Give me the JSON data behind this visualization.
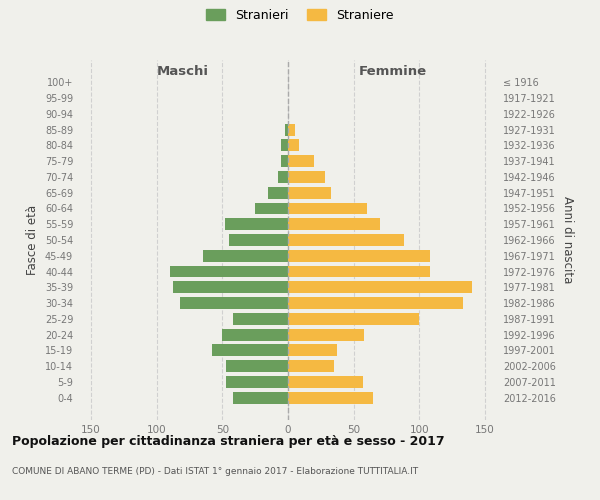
{
  "age_groups": [
    "100+",
    "95-99",
    "90-94",
    "85-89",
    "80-84",
    "75-79",
    "70-74",
    "65-69",
    "60-64",
    "55-59",
    "50-54",
    "45-49",
    "40-44",
    "35-39",
    "30-34",
    "25-29",
    "20-24",
    "15-19",
    "10-14",
    "5-9",
    "0-4"
  ],
  "birth_years": [
    "≤ 1916",
    "1917-1921",
    "1922-1926",
    "1927-1931",
    "1932-1936",
    "1937-1941",
    "1942-1946",
    "1947-1951",
    "1952-1956",
    "1957-1961",
    "1962-1966",
    "1967-1971",
    "1972-1976",
    "1977-1981",
    "1982-1986",
    "1987-1991",
    "1992-1996",
    "1997-2001",
    "2002-2006",
    "2007-2011",
    "2012-2016"
  ],
  "maschi": [
    0,
    0,
    0,
    2,
    5,
    5,
    8,
    15,
    25,
    48,
    45,
    65,
    90,
    88,
    82,
    42,
    50,
    58,
    47,
    47,
    42
  ],
  "femmine": [
    0,
    0,
    0,
    5,
    8,
    20,
    28,
    33,
    60,
    70,
    88,
    108,
    108,
    140,
    133,
    100,
    58,
    37,
    35,
    57,
    65
  ],
  "maschi_color": "#6a9e5c",
  "femmine_color": "#f5b942",
  "background_color": "#f0f0eb",
  "grid_color": "#d0d0d0",
  "title": "Popolazione per cittadinanza straniera per età e sesso - 2017",
  "subtitle": "COMUNE DI ABANO TERME (PD) - Dati ISTAT 1° gennaio 2017 - Elaborazione TUTTITALIA.IT",
  "label_maschi": "Maschi",
  "label_femmine": "Femmine",
  "ylabel_left": "Fasce di età",
  "ylabel_right": "Anni di nascita",
  "legend_stranieri": "Stranieri",
  "legend_straniere": "Straniere",
  "xlim": 160
}
